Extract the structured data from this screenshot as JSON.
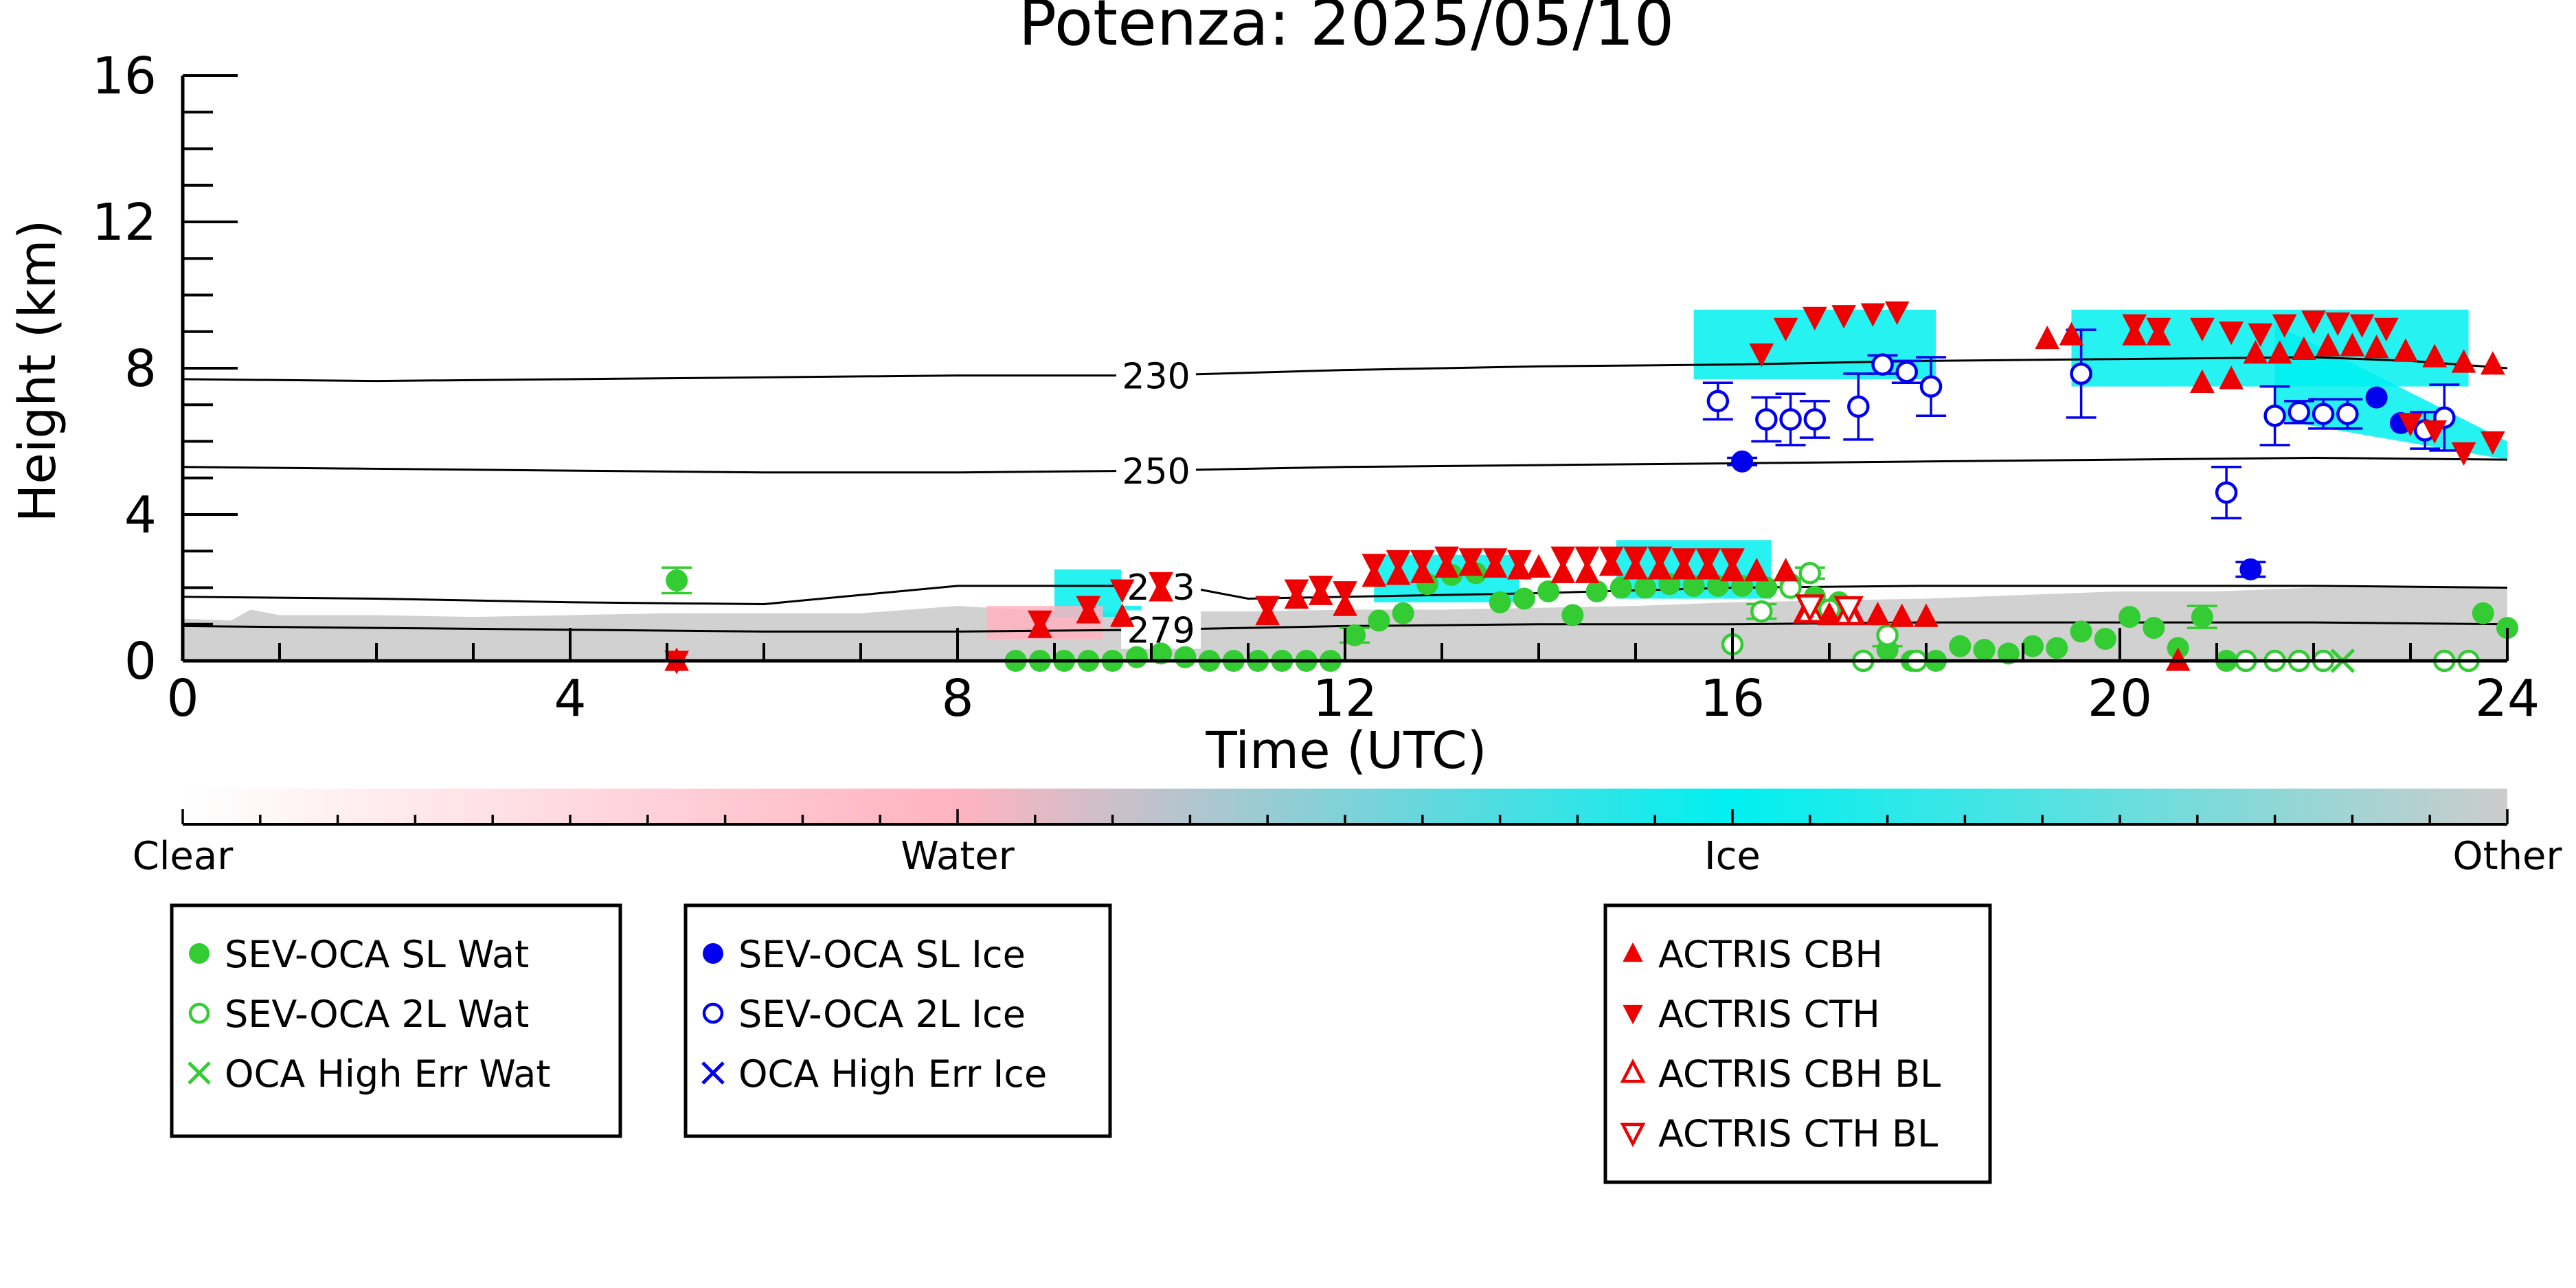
{
  "title": "Potenza: 2025/05/10",
  "colors": {
    "water_marker": "#33cc33",
    "ice_marker": "#0000ee",
    "actris": "#ee0000",
    "cloud_ice": "#00f0f0",
    "cloud_water": "#ffb3c0",
    "cloud_other": "#cccccc"
  },
  "chart_data": {
    "type": "scatter",
    "title": "Potenza: 2025/05/10",
    "xlabel": "Time (UTC)",
    "ylabel": "Height (km)",
    "xlim": [
      0,
      24
    ],
    "ylim": [
      0,
      16
    ],
    "xticks": [
      "0",
      "4",
      "8",
      "12",
      "16",
      "20",
      "24"
    ],
    "yticks": [
      "0",
      "4",
      "8",
      "12",
      "16"
    ],
    "grid": false,
    "contours": [
      {
        "label": "230",
        "label_x": 10.05,
        "x": [
          0,
          2,
          4,
          6,
          8,
          10,
          12,
          14,
          16,
          18,
          20,
          22,
          23,
          24
        ],
        "y": [
          7.7,
          7.65,
          7.7,
          7.75,
          7.8,
          7.8,
          7.95,
          8.05,
          8.1,
          8.2,
          8.25,
          8.3,
          8.2,
          8.0
        ]
      },
      {
        "label": "250",
        "label_x": 10.05,
        "x": [
          0,
          2,
          4,
          6,
          8,
          10,
          12,
          14,
          16,
          18,
          20,
          22,
          24
        ],
        "y": [
          5.3,
          5.25,
          5.2,
          5.15,
          5.15,
          5.2,
          5.3,
          5.35,
          5.4,
          5.45,
          5.5,
          5.55,
          5.5
        ]
      },
      {
        "label": "273",
        "label_x": 10.1,
        "x": [
          0,
          2,
          4,
          6,
          7,
          8,
          9,
          10,
          10.5,
          11,
          12,
          14,
          16,
          18,
          20,
          22,
          24
        ],
        "y": [
          1.75,
          1.7,
          1.6,
          1.55,
          1.8,
          2.05,
          2.05,
          2.05,
          1.95,
          1.7,
          1.75,
          1.85,
          2.0,
          2.05,
          2.05,
          2.05,
          2.0
        ]
      },
      {
        "label": "279",
        "label_x": 10.1,
        "x": [
          0,
          2,
          4,
          6,
          8,
          10,
          12,
          14,
          16,
          18,
          20,
          22,
          24
        ],
        "y": [
          0.95,
          0.9,
          0.85,
          0.8,
          0.8,
          0.85,
          0.95,
          1.0,
          1.0,
          1.05,
          1.05,
          1.05,
          1.0
        ]
      }
    ],
    "series": [
      {
        "name": "SEV-OCA SL Wat",
        "marker": "filled-circle",
        "color": "#33cc33",
        "x": [
          5.1,
          8.6,
          8.85,
          9.1,
          9.35,
          9.6,
          9.85,
          10.1,
          10.35,
          10.6,
          10.85,
          11.1,
          11.35,
          11.6,
          11.85,
          12.1,
          12.35,
          12.6,
          12.85,
          13.1,
          13.35,
          13.6,
          13.85,
          14.1,
          14.35,
          14.6,
          14.85,
          15.1,
          15.35,
          15.6,
          15.85,
          16.1,
          16.35,
          16.6,
          16.85,
          17.1,
          17.35,
          17.6,
          17.85,
          18.1,
          18.35,
          18.6,
          18.85,
          19.1,
          19.35,
          19.6,
          19.85,
          20.1,
          20.35,
          20.6,
          20.85,
          21.1,
          23.75,
          24.0
        ],
        "y": [
          2.2,
          0.0,
          0.0,
          0.0,
          0.0,
          0.0,
          0.1,
          0.2,
          0.1,
          0.0,
          0.0,
          0.0,
          0.0,
          0.0,
          0.0,
          0.7,
          1.1,
          1.3,
          2.1,
          2.35,
          2.4,
          1.6,
          1.7,
          1.9,
          1.25,
          1.9,
          2.0,
          2.0,
          2.1,
          2.05,
          2.05,
          2.05,
          2.0,
          2.1,
          1.75,
          1.6,
          0.0,
          0.3,
          0.0,
          0.0,
          0.4,
          0.3,
          0.2,
          0.4,
          0.35,
          0.8,
          0.6,
          1.2,
          0.9,
          0.35,
          1.2,
          0.0,
          1.3,
          0.9
        ],
        "y_err": [
          0.35,
          0,
          0,
          0,
          0,
          0,
          0,
          0,
          0,
          0,
          0,
          0,
          0,
          0,
          0,
          0.2,
          0,
          0,
          0,
          0,
          0,
          0,
          0,
          0,
          0,
          0,
          0,
          0,
          0,
          0,
          0,
          0,
          0,
          0,
          0,
          0,
          0,
          0,
          0,
          0,
          0,
          0,
          0,
          0,
          0,
          0,
          0,
          0,
          0,
          0,
          0.3,
          0,
          0,
          0
        ]
      },
      {
        "name": "SEV-OCA 2L Wat",
        "marker": "open-circle",
        "color": "#33cc33",
        "x": [
          16.0,
          16.3,
          16.6,
          16.8,
          17.0,
          17.35,
          17.6,
          17.9,
          21.3,
          21.6,
          21.85,
          22.1,
          23.35,
          23.6
        ],
        "y": [
          0.45,
          1.35,
          2.0,
          2.4,
          1.4,
          0.0,
          0.7,
          0.0,
          0.0,
          0.0,
          0.0,
          0.0,
          0.0,
          0.0
        ],
        "y_err": [
          0,
          0.2,
          0,
          0.15,
          0.2,
          0,
          0.3,
          0,
          0,
          0,
          0,
          0,
          0,
          0
        ]
      },
      {
        "name": "OCA High Err Wat",
        "marker": "x",
        "color": "#33cc33",
        "x": [
          22.3
        ],
        "y": [
          0.0
        ],
        "y_err": [
          0
        ]
      },
      {
        "name": "SEV-OCA SL Ice",
        "marker": "filled-circle",
        "color": "#0000ee",
        "x": [
          16.1,
          21.35,
          22.65,
          22.9
        ],
        "y": [
          5.45,
          2.5,
          7.2,
          6.5
        ],
        "y_err": [
          0.1,
          0.2,
          0,
          0
        ]
      },
      {
        "name": "SEV-OCA 2L Ice",
        "marker": "open-circle",
        "color": "#0000ee",
        "x": [
          15.85,
          16.35,
          16.6,
          16.85,
          17.3,
          17.55,
          17.8,
          18.05,
          19.6,
          21.1,
          21.6,
          21.85,
          22.1,
          22.35,
          23.15,
          23.35
        ],
        "y": [
          7.1,
          6.6,
          6.6,
          6.6,
          6.95,
          8.1,
          7.9,
          7.5,
          7.85,
          4.6,
          6.7,
          6.8,
          6.75,
          6.75,
          6.3,
          6.65
        ],
        "y_err": [
          0.5,
          0.6,
          0.7,
          0.5,
          0.9,
          0.25,
          0.3,
          0.8,
          1.2,
          0.7,
          0.8,
          0.3,
          0.4,
          0.4,
          0.5,
          0.9
        ]
      },
      {
        "name": "OCA High Err Ice",
        "marker": "x",
        "color": "#0000ee",
        "x": [],
        "y": [],
        "y_err": []
      },
      {
        "name": "ACTRIS CBH",
        "marker": "triangle-up",
        "color": "#ee0000",
        "x": [
          5.1,
          8.85,
          9.35,
          9.7,
          10.1,
          11.2,
          11.5,
          11.75,
          12.0,
          12.3,
          12.55,
          12.8,
          13.05,
          13.3,
          13.55,
          13.8,
          14.0,
          14.25,
          14.5,
          14.75,
          15.0,
          15.25,
          15.5,
          15.75,
          16.0,
          16.25,
          16.55,
          16.75,
          17.0,
          17.25,
          17.5,
          17.75,
          18.0,
          19.25,
          19.5,
          20.15,
          20.4,
          20.6,
          20.85,
          21.15,
          21.4,
          21.65,
          21.9,
          22.15,
          22.4,
          22.65,
          22.95,
          23.25,
          23.55,
          23.85
        ],
        "y": [
          0.0,
          0.9,
          1.3,
          1.2,
          1.9,
          1.25,
          1.7,
          1.8,
          1.5,
          2.3,
          2.35,
          2.4,
          2.55,
          2.6,
          2.55,
          2.5,
          2.55,
          2.4,
          2.4,
          2.6,
          2.5,
          2.5,
          2.5,
          2.5,
          2.45,
          2.45,
          2.45,
          1.3,
          1.25,
          1.25,
          1.25,
          1.2,
          1.2,
          8.8,
          8.9,
          8.9,
          8.9,
          0.0,
          7.6,
          7.7,
          8.4,
          8.4,
          8.5,
          8.6,
          8.6,
          8.55,
          8.45,
          8.3,
          8.15,
          8.1
        ],
        "y_err": []
      },
      {
        "name": "ACTRIS CTH",
        "marker": "triangle-down",
        "color": "#ee0000",
        "x": [
          5.1,
          8.85,
          9.35,
          9.7,
          10.1,
          11.2,
          11.5,
          11.75,
          12.0,
          12.3,
          12.55,
          12.8,
          13.05,
          13.3,
          13.55,
          13.8,
          14.25,
          14.5,
          14.75,
          15.0,
          15.25,
          15.5,
          15.75,
          16.0,
          16.3,
          16.55,
          16.85,
          17.15,
          17.45,
          17.7,
          20.15,
          20.4,
          20.85,
          21.15,
          21.45,
          21.7,
          22.0,
          22.25,
          22.5,
          22.75,
          23.0,
          23.25,
          23.55,
          23.85
        ],
        "y": [
          0.0,
          1.1,
          1.5,
          1.95,
          2.15,
          1.5,
          1.95,
          2.05,
          1.9,
          2.65,
          2.75,
          2.75,
          2.85,
          2.8,
          2.8,
          2.75,
          2.85,
          2.85,
          2.85,
          2.85,
          2.85,
          2.8,
          2.8,
          2.8,
          8.4,
          9.1,
          9.4,
          9.45,
          9.5,
          9.55,
          9.2,
          9.1,
          9.1,
          9.0,
          8.95,
          9.2,
          9.3,
          9.25,
          9.2,
          9.1,
          6.5,
          6.3,
          5.7,
          6.0
        ],
        "y_err": []
      },
      {
        "name": "ACTRIS CBH BL",
        "marker": "open-triangle-up",
        "color": "#ee0000",
        "x": [
          16.8,
          17.2
        ],
        "y": [
          1.35,
          1.3
        ],
        "y_err": []
      },
      {
        "name": "ACTRIS CTH BL",
        "marker": "open-triangle-down",
        "color": "#ee0000",
        "x": [
          16.8,
          17.2
        ],
        "y": [
          1.5,
          1.45
        ],
        "y_err": []
      }
    ],
    "cloud_phase_areas": [
      {
        "phase": "Other",
        "x": [
          0,
          0.5,
          0.7,
          1,
          2,
          3,
          4,
          5,
          6,
          7,
          8,
          9,
          10,
          11,
          12,
          13,
          14,
          15,
          16,
          17,
          18,
          19,
          20,
          21,
          22,
          23,
          24
        ],
        "top": [
          1.15,
          1.1,
          1.4,
          1.25,
          1.25,
          1.2,
          1.25,
          1.3,
          1.3,
          1.3,
          1.5,
          1.35,
          1.35,
          1.35,
          1.4,
          1.4,
          1.45,
          1.5,
          1.6,
          1.65,
          1.7,
          1.8,
          1.9,
          1.9,
          2.0,
          2.0,
          2.0
        ]
      },
      {
        "phase": "Ice",
        "x": [
          15.6,
          18.1
        ],
        "top": [
          9.6,
          9.6
        ],
        "bottom": [
          7.7,
          7.7
        ]
      },
      {
        "phase": "Ice",
        "x": [
          19.5,
          23.6
        ],
        "top": [
          9.6,
          9.6
        ],
        "bottom": [
          7.5,
          7.5
        ]
      },
      {
        "phase": "Ice",
        "x": [
          21.6,
          24.0
        ],
        "top": [
          9.2,
          6.0
        ],
        "bottom": [
          6.6,
          5.5
        ]
      },
      {
        "phase": "Ice",
        "x": [
          12.3,
          13.8
        ],
        "top": [
          2.9,
          2.9
        ],
        "bottom": [
          1.6,
          1.6
        ]
      },
      {
        "phase": "Ice",
        "x": [
          14.8,
          16.4
        ],
        "top": [
          3.3,
          3.3
        ],
        "bottom": [
          1.7,
          1.7
        ]
      },
      {
        "phase": "Ice",
        "x": [
          9.0,
          9.9
        ],
        "top": [
          2.5,
          2.5
        ],
        "bottom": [
          1.2,
          1.2
        ]
      },
      {
        "phase": "Water",
        "x": [
          8.3,
          9.5
        ],
        "top": [
          1.5,
          1.5
        ],
        "bottom": [
          0.6,
          0.6
        ]
      }
    ],
    "colorbar": {
      "labels": [
        "Clear",
        "Water",
        "Ice",
        "Other"
      ],
      "colors": [
        "#ffffff",
        "#ffb3c0",
        "#00f0f0",
        "#cccccc"
      ]
    },
    "legend_placement": "bottom",
    "legend_groups": [
      [
        "SEV-OCA SL Wat",
        "SEV-OCA 2L Wat",
        "OCA High Err Wat"
      ],
      [
        "SEV-OCA SL Ice",
        "SEV-OCA 2L Ice",
        "OCA High Err Ice"
      ],
      [
        "ACTRIS CBH",
        "ACTRIS CTH",
        "ACTRIS CBH BL",
        "ACTRIS CTH BL"
      ]
    ]
  }
}
